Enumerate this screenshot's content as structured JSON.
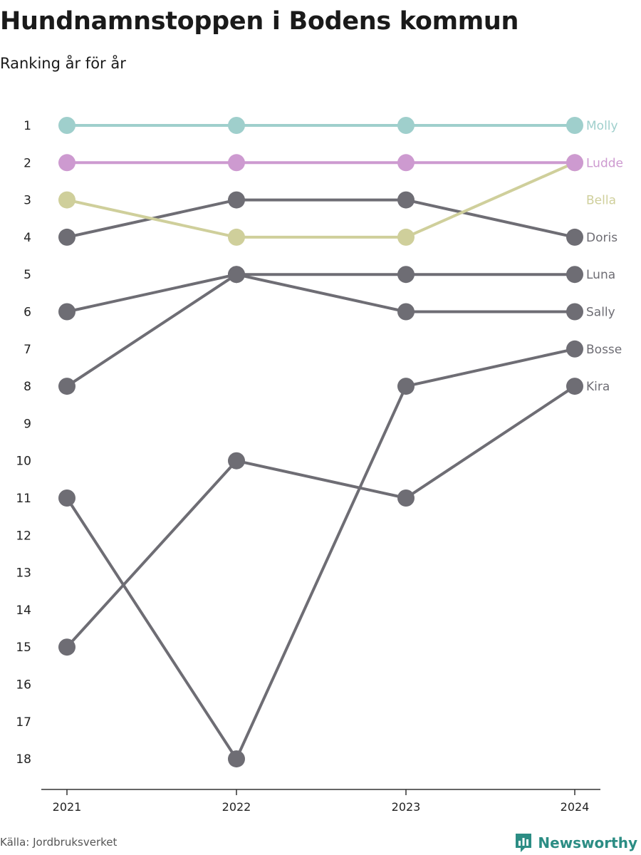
{
  "title": "Hundnamnstoppen i Bodens kommun",
  "subtitle": "Ranking år för år",
  "source": "Källa: Jordbruksverket",
  "brand": "Newsworthy",
  "colors": {
    "grey": "#6e6d74",
    "molly": "#9fcfcc",
    "ludde": "#cd9ad0",
    "bella": "#cfcf9b",
    "axis": "#333333",
    "brand": "#2c8d84"
  },
  "chart_data": {
    "type": "line",
    "subtype": "bump",
    "x": [
      "2021",
      "2022",
      "2023",
      "2024"
    ],
    "y_ticks": [
      "1",
      "2",
      "3",
      "4",
      "5",
      "6",
      "7",
      "8",
      "9",
      "10",
      "11",
      "12",
      "13",
      "14",
      "15",
      "16",
      "17",
      "18"
    ],
    "ylim": [
      1,
      18
    ],
    "y_reversed": true,
    "series": [
      {
        "name": "Kira",
        "values": [
          15,
          10,
          11,
          8
        ],
        "color": "#6e6d74"
      },
      {
        "name": "Bosse",
        "values": [
          11,
          18,
          8,
          7
        ],
        "color": "#6e6d74"
      },
      {
        "name": "Sally",
        "values": [
          8,
          5,
          6,
          6
        ],
        "color": "#6e6d74"
      },
      {
        "name": "Luna",
        "values": [
          6,
          5,
          5,
          5
        ],
        "color": "#6e6d74"
      },
      {
        "name": "Doris",
        "values": [
          4,
          3,
          3,
          4
        ],
        "color": "#6e6d74"
      },
      {
        "name": "Bella",
        "values": [
          3,
          4,
          4,
          2
        ],
        "color": "#cfcf9b"
      },
      {
        "name": "Ludde",
        "values": [
          2,
          2,
          2,
          2
        ],
        "color": "#cd9ad0"
      },
      {
        "name": "Molly",
        "values": [
          1,
          1,
          1,
          1
        ],
        "color": "#9fcfcc"
      }
    ],
    "labels_at_end": true
  }
}
